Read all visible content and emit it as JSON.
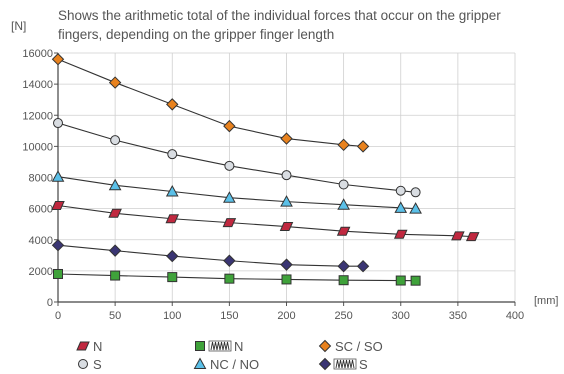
{
  "chart_data": {
    "type": "line",
    "title": "Shows the arithmetic total of the individual forces that occur on the gripper fingers, depending on the gripper finger length",
    "title_lines": [
      "Shows the arithmetic total of the individual forces that occur on the gripper",
      "fingers, depending on the gripper finger length"
    ],
    "ylabel": "[N]",
    "xlabel": "[mm]",
    "xlim": [
      0,
      400
    ],
    "ylim": [
      0,
      16000
    ],
    "xticks": [
      0,
      50,
      100,
      150,
      200,
      250,
      300,
      350,
      400
    ],
    "yticks": [
      0,
      2000,
      4000,
      6000,
      8000,
      10000,
      12000,
      14000,
      16000
    ],
    "grid": true,
    "legend_position": "bottom",
    "series": [
      {
        "name": "SC / SO",
        "marker": "diamond",
        "color": "#e8821e",
        "x": [
          0,
          50,
          100,
          150,
          200,
          250,
          267
        ],
        "y": [
          15600,
          14100,
          12700,
          11300,
          10500,
          10100,
          10000
        ]
      },
      {
        "name": "S",
        "marker": "circle",
        "color": "#d9dde2",
        "x": [
          0,
          50,
          100,
          150,
          200,
          250,
          300,
          313
        ],
        "y": [
          11500,
          10400,
          9500,
          8750,
          8150,
          7550,
          7150,
          7050
        ]
      },
      {
        "name": "NC / NO",
        "marker": "triangle",
        "color": "#5bc0e8",
        "x": [
          0,
          50,
          100,
          150,
          200,
          250,
          300,
          313
        ],
        "y": [
          8050,
          7500,
          7100,
          6700,
          6450,
          6250,
          6050,
          6000
        ]
      },
      {
        "name": "N",
        "marker": "parallelogram",
        "color": "#c0283f",
        "x": [
          0,
          50,
          100,
          150,
          200,
          250,
          300,
          350,
          363
        ],
        "y": [
          6200,
          5700,
          5350,
          5100,
          4850,
          4550,
          4350,
          4250,
          4200
        ]
      },
      {
        "name": "S",
        "legend_prefix_icon": "spring-icon",
        "marker": "diamond",
        "color": "#3a3573",
        "x": [
          0,
          50,
          100,
          150,
          200,
          250,
          267
        ],
        "y": [
          3650,
          3300,
          2950,
          2650,
          2400,
          2300,
          2300
        ]
      },
      {
        "name": "N",
        "legend_prefix_icon": "spring-icon",
        "marker": "square",
        "color": "#3fa23a",
        "x": [
          0,
          50,
          100,
          150,
          200,
          250,
          300,
          313
        ],
        "y": [
          1800,
          1700,
          1600,
          1500,
          1450,
          1400,
          1380,
          1370
        ]
      }
    ],
    "legend_order": [
      3,
      1,
      5,
      2,
      0,
      4
    ]
  }
}
